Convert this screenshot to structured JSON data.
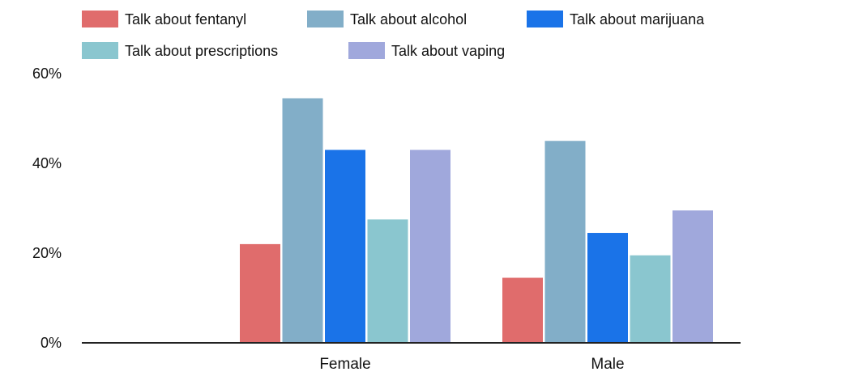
{
  "chart_data": {
    "type": "bar",
    "title": "",
    "xlabel": "",
    "ylabel": "",
    "categories": [
      "Female",
      "Male"
    ],
    "series": [
      {
        "name": "Talk about fentanyl",
        "color": "#e06c6c",
        "values": [
          22,
          14.5
        ]
      },
      {
        "name": "Talk about alcohol",
        "color": "#82aec8",
        "values": [
          54.5,
          45
        ]
      },
      {
        "name": "Talk about marijuana",
        "color": "#1a73e8",
        "values": [
          43,
          24.5
        ]
      },
      {
        "name": "Talk about prescriptions",
        "color": "#8ac6cf",
        "values": [
          27.5,
          19.5
        ]
      },
      {
        "name": "Talk about vaping",
        "color": "#a0a8dc",
        "values": [
          43,
          29.5
        ]
      }
    ],
    "ylim": [
      0,
      60
    ],
    "yticks": [
      0,
      20,
      40,
      60
    ],
    "ytick_labels": [
      "0%",
      "20%",
      "40%",
      "60%"
    ],
    "grid": false,
    "legend_position": "top"
  }
}
